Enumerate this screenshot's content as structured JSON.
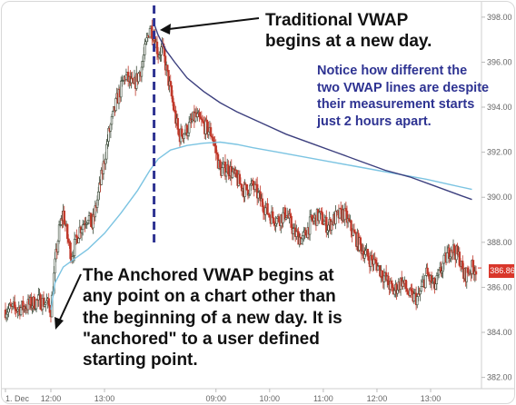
{
  "chart_data": {
    "type": "candlestick",
    "ylim": [
      381.5,
      398.6
    ],
    "y_ticks": [
      "398.00",
      "396.00",
      "394.00",
      "392.00",
      "390.00",
      "388.00",
      "386.00",
      "384.00",
      "382.00"
    ],
    "y_tick_values": [
      398,
      396,
      394,
      392,
      390,
      388,
      386,
      384,
      382
    ],
    "x_ticks": [
      {
        "label": "1. Dec",
        "t": 0
      },
      {
        "label": "12:00",
        "t": 11
      },
      {
        "label": "13:00",
        "t": 24
      },
      {
        "label": "09:00",
        "t": 51
      },
      {
        "label": "10:00",
        "t": 64
      },
      {
        "label": "11:00",
        "t": 77
      },
      {
        "label": "12:00",
        "t": 90
      },
      {
        "label": "13:00",
        "t": 103
      }
    ],
    "t_range": [
      0,
      114
    ],
    "last_price_label": "386.86",
    "last_price": 386.86,
    "close_series": [
      {
        "t": 0,
        "v": 385.0
      },
      {
        "t": 4,
        "v": 385.1
      },
      {
        "t": 8,
        "v": 385.4
      },
      {
        "t": 10,
        "v": 385.3
      },
      {
        "t": 11,
        "v": 385.0
      },
      {
        "t": 12,
        "v": 387.0
      },
      {
        "t": 13,
        "v": 388.5
      },
      {
        "t": 14,
        "v": 389.3
      },
      {
        "t": 15,
        "v": 388.2
      },
      {
        "t": 16,
        "v": 387.4
      },
      {
        "t": 18,
        "v": 388.6
      },
      {
        "t": 20,
        "v": 389.2
      },
      {
        "t": 21,
        "v": 388.7
      },
      {
        "t": 23,
        "v": 390.6
      },
      {
        "t": 25,
        "v": 392.8
      },
      {
        "t": 27,
        "v": 394.3
      },
      {
        "t": 29,
        "v": 395.4
      },
      {
        "t": 31,
        "v": 394.9
      },
      {
        "t": 33,
        "v": 395.8
      },
      {
        "t": 35,
        "v": 397.6
      },
      {
        "t": 36,
        "v": 397.2
      },
      {
        "t": 37,
        "v": 396.4
      },
      {
        "t": 38,
        "v": 396.6
      },
      {
        "t": 40,
        "v": 394.7
      },
      {
        "t": 42,
        "v": 392.7
      },
      {
        "t": 44,
        "v": 393.0
      },
      {
        "t": 46,
        "v": 393.6
      },
      {
        "t": 48,
        "v": 393.2
      },
      {
        "t": 50,
        "v": 392.8
      },
      {
        "t": 51,
        "v": 392.0
      },
      {
        "t": 52,
        "v": 391.2
      },
      {
        "t": 54,
        "v": 391.3
      },
      {
        "t": 56,
        "v": 390.8
      },
      {
        "t": 58,
        "v": 390.3
      },
      {
        "t": 60,
        "v": 390.5
      },
      {
        "t": 62,
        "v": 389.8
      },
      {
        "t": 64,
        "v": 389.2
      },
      {
        "t": 66,
        "v": 389.0
      },
      {
        "t": 68,
        "v": 389.3
      },
      {
        "t": 70,
        "v": 388.4
      },
      {
        "t": 72,
        "v": 388.1
      },
      {
        "t": 74,
        "v": 388.9
      },
      {
        "t": 76,
        "v": 389.2
      },
      {
        "t": 78,
        "v": 388.7
      },
      {
        "t": 80,
        "v": 389.1
      },
      {
        "t": 82,
        "v": 389.3
      },
      {
        "t": 84,
        "v": 388.5
      },
      {
        "t": 86,
        "v": 387.8
      },
      {
        "t": 88,
        "v": 387.3
      },
      {
        "t": 90,
        "v": 387.0
      },
      {
        "t": 92,
        "v": 386.4
      },
      {
        "t": 94,
        "v": 385.8
      },
      {
        "t": 96,
        "v": 386.3
      },
      {
        "t": 98,
        "v": 385.6
      },
      {
        "t": 100,
        "v": 385.5
      },
      {
        "t": 102,
        "v": 386.6
      },
      {
        "t": 104,
        "v": 386.0
      },
      {
        "t": 106,
        "v": 387.0
      },
      {
        "t": 108,
        "v": 387.8
      },
      {
        "t": 110,
        "v": 387.3
      },
      {
        "t": 111,
        "v": 386.5
      },
      {
        "t": 113,
        "v": 386.86
      }
    ],
    "series": [
      {
        "color": "#7cc4e2",
        "points": [
          {
            "t": 11,
            "v": 385.0
          },
          {
            "t": 12,
            "v": 386.2
          },
          {
            "t": 14,
            "v": 386.9
          },
          {
            "t": 17,
            "v": 387.3
          },
          {
            "t": 20,
            "v": 387.7
          },
          {
            "t": 24,
            "v": 388.4
          },
          {
            "t": 28,
            "v": 389.3
          },
          {
            "t": 32,
            "v": 390.3
          },
          {
            "t": 35,
            "v": 391.2
          },
          {
            "t": 37,
            "v": 391.7
          },
          {
            "t": 40,
            "v": 392.1
          },
          {
            "t": 44,
            "v": 392.3
          },
          {
            "t": 48,
            "v": 392.4
          },
          {
            "t": 52,
            "v": 392.45
          },
          {
            "t": 56,
            "v": 392.35
          },
          {
            "t": 60,
            "v": 392.2
          },
          {
            "t": 66,
            "v": 392.0
          },
          {
            "t": 72,
            "v": 391.8
          },
          {
            "t": 78,
            "v": 391.6
          },
          {
            "t": 84,
            "v": 391.4
          },
          {
            "t": 90,
            "v": 391.2
          },
          {
            "t": 96,
            "v": 391.0
          },
          {
            "t": 102,
            "v": 390.8
          },
          {
            "t": 108,
            "v": 390.55
          },
          {
            "t": 113,
            "v": 390.35
          }
        ]
      },
      {
        "color": "#3c3f7e",
        "points": [
          {
            "t": 36,
            "v": 397.7
          },
          {
            "t": 37,
            "v": 397.2
          },
          {
            "t": 39,
            "v": 396.5
          },
          {
            "t": 41,
            "v": 396.0
          },
          {
            "t": 44,
            "v": 395.3
          },
          {
            "t": 48,
            "v": 394.7
          },
          {
            "t": 52,
            "v": 394.2
          },
          {
            "t": 56,
            "v": 393.8
          },
          {
            "t": 62,
            "v": 393.3
          },
          {
            "t": 68,
            "v": 392.8
          },
          {
            "t": 74,
            "v": 392.4
          },
          {
            "t": 80,
            "v": 392.0
          },
          {
            "t": 86,
            "v": 391.6
          },
          {
            "t": 92,
            "v": 391.2
          },
          {
            "t": 98,
            "v": 390.9
          },
          {
            "t": 104,
            "v": 390.5
          },
          {
            "t": 110,
            "v": 390.1
          },
          {
            "t": 113,
            "v": 389.9
          }
        ]
      }
    ],
    "marker_t": 36,
    "annotations": {
      "top": [
        "Traditional VWAP",
        "begins at a new day."
      ],
      "right": [
        "Notice how different the",
        "two VWAP lines are despite",
        "their measurement starts",
        "just 2 hours apart."
      ],
      "bottom": [
        "The Anchored VWAP begins at",
        "any point on a chart other than",
        "the beginning of a new day.  It is",
        "\"anchored\" to a user defined",
        "starting point."
      ]
    }
  }
}
